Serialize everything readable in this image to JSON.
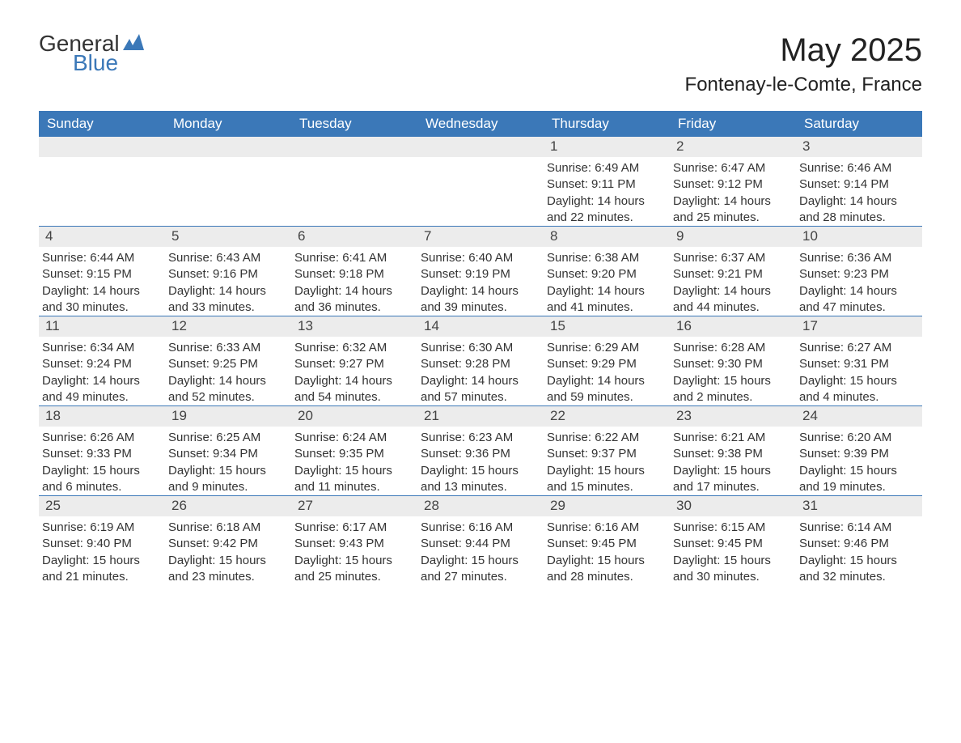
{
  "logo": {
    "general": "General",
    "blue": "Blue"
  },
  "title": "May 2025",
  "location": "Fontenay-le-Comte, France",
  "weekday_labels": [
    "Sunday",
    "Monday",
    "Tuesday",
    "Wednesday",
    "Thursday",
    "Friday",
    "Saturday"
  ],
  "colors": {
    "header_bg": "#3b78b8",
    "header_text": "#ffffff",
    "daynum_bg": "#ececec",
    "daynum_text": "#444444",
    "body_text": "#333333",
    "week_separator": "#3b78b8",
    "page_bg": "#ffffff",
    "logo_accent": "#3b78b8"
  },
  "typography": {
    "title_fontsize": 40,
    "location_fontsize": 24,
    "weekday_fontsize": 17,
    "daynum_fontsize": 17,
    "body_fontsize": 15,
    "font_family": "Arial"
  },
  "layout": {
    "columns": 7,
    "rows": 5,
    "leading_blank_cells": 4,
    "days_in_month": 31
  },
  "labels": {
    "sunrise": "Sunrise",
    "sunset": "Sunset",
    "daylight": "Daylight"
  },
  "days": [
    {
      "n": 1,
      "sunrise": "6:49 AM",
      "sunset": "9:11 PM",
      "daylight": "14 hours and 22 minutes."
    },
    {
      "n": 2,
      "sunrise": "6:47 AM",
      "sunset": "9:12 PM",
      "daylight": "14 hours and 25 minutes."
    },
    {
      "n": 3,
      "sunrise": "6:46 AM",
      "sunset": "9:14 PM",
      "daylight": "14 hours and 28 minutes."
    },
    {
      "n": 4,
      "sunrise": "6:44 AM",
      "sunset": "9:15 PM",
      "daylight": "14 hours and 30 minutes."
    },
    {
      "n": 5,
      "sunrise": "6:43 AM",
      "sunset": "9:16 PM",
      "daylight": "14 hours and 33 minutes."
    },
    {
      "n": 6,
      "sunrise": "6:41 AM",
      "sunset": "9:18 PM",
      "daylight": "14 hours and 36 minutes."
    },
    {
      "n": 7,
      "sunrise": "6:40 AM",
      "sunset": "9:19 PM",
      "daylight": "14 hours and 39 minutes."
    },
    {
      "n": 8,
      "sunrise": "6:38 AM",
      "sunset": "9:20 PM",
      "daylight": "14 hours and 41 minutes."
    },
    {
      "n": 9,
      "sunrise": "6:37 AM",
      "sunset": "9:21 PM",
      "daylight": "14 hours and 44 minutes."
    },
    {
      "n": 10,
      "sunrise": "6:36 AM",
      "sunset": "9:23 PM",
      "daylight": "14 hours and 47 minutes."
    },
    {
      "n": 11,
      "sunrise": "6:34 AM",
      "sunset": "9:24 PM",
      "daylight": "14 hours and 49 minutes."
    },
    {
      "n": 12,
      "sunrise": "6:33 AM",
      "sunset": "9:25 PM",
      "daylight": "14 hours and 52 minutes."
    },
    {
      "n": 13,
      "sunrise": "6:32 AM",
      "sunset": "9:27 PM",
      "daylight": "14 hours and 54 minutes."
    },
    {
      "n": 14,
      "sunrise": "6:30 AM",
      "sunset": "9:28 PM",
      "daylight": "14 hours and 57 minutes."
    },
    {
      "n": 15,
      "sunrise": "6:29 AM",
      "sunset": "9:29 PM",
      "daylight": "14 hours and 59 minutes."
    },
    {
      "n": 16,
      "sunrise": "6:28 AM",
      "sunset": "9:30 PM",
      "daylight": "15 hours and 2 minutes."
    },
    {
      "n": 17,
      "sunrise": "6:27 AM",
      "sunset": "9:31 PM",
      "daylight": "15 hours and 4 minutes."
    },
    {
      "n": 18,
      "sunrise": "6:26 AM",
      "sunset": "9:33 PM",
      "daylight": "15 hours and 6 minutes."
    },
    {
      "n": 19,
      "sunrise": "6:25 AM",
      "sunset": "9:34 PM",
      "daylight": "15 hours and 9 minutes."
    },
    {
      "n": 20,
      "sunrise": "6:24 AM",
      "sunset": "9:35 PM",
      "daylight": "15 hours and 11 minutes."
    },
    {
      "n": 21,
      "sunrise": "6:23 AM",
      "sunset": "9:36 PM",
      "daylight": "15 hours and 13 minutes."
    },
    {
      "n": 22,
      "sunrise": "6:22 AM",
      "sunset": "9:37 PM",
      "daylight": "15 hours and 15 minutes."
    },
    {
      "n": 23,
      "sunrise": "6:21 AM",
      "sunset": "9:38 PM",
      "daylight": "15 hours and 17 minutes."
    },
    {
      "n": 24,
      "sunrise": "6:20 AM",
      "sunset": "9:39 PM",
      "daylight": "15 hours and 19 minutes."
    },
    {
      "n": 25,
      "sunrise": "6:19 AM",
      "sunset": "9:40 PM",
      "daylight": "15 hours and 21 minutes."
    },
    {
      "n": 26,
      "sunrise": "6:18 AM",
      "sunset": "9:42 PM",
      "daylight": "15 hours and 23 minutes."
    },
    {
      "n": 27,
      "sunrise": "6:17 AM",
      "sunset": "9:43 PM",
      "daylight": "15 hours and 25 minutes."
    },
    {
      "n": 28,
      "sunrise": "6:16 AM",
      "sunset": "9:44 PM",
      "daylight": "15 hours and 27 minutes."
    },
    {
      "n": 29,
      "sunrise": "6:16 AM",
      "sunset": "9:45 PM",
      "daylight": "15 hours and 28 minutes."
    },
    {
      "n": 30,
      "sunrise": "6:15 AM",
      "sunset": "9:45 PM",
      "daylight": "15 hours and 30 minutes."
    },
    {
      "n": 31,
      "sunrise": "6:14 AM",
      "sunset": "9:46 PM",
      "daylight": "15 hours and 32 minutes."
    }
  ]
}
